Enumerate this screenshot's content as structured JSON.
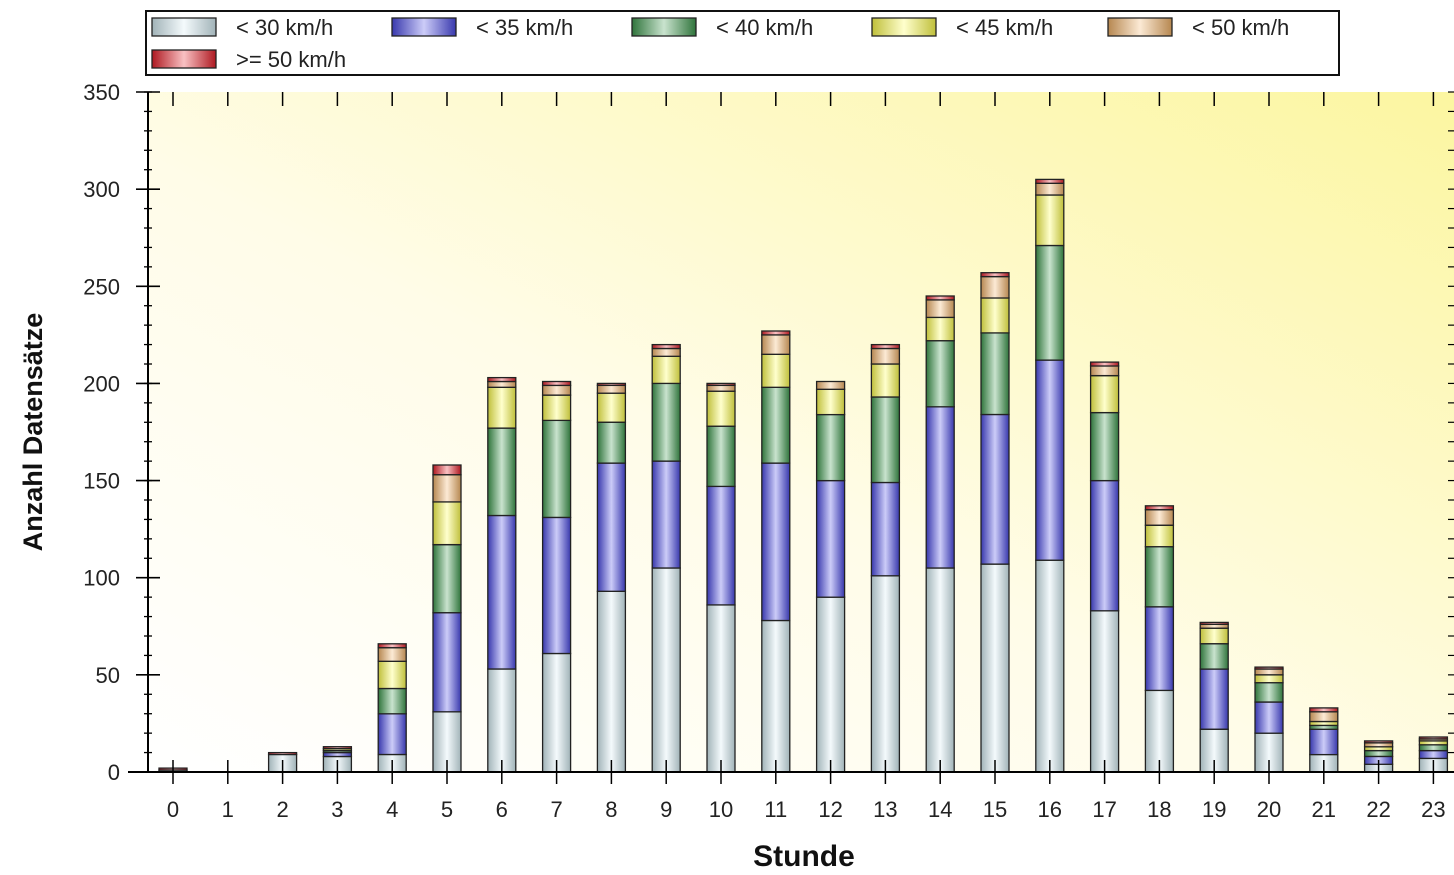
{
  "chart_data": {
    "type": "bar",
    "stacked": true,
    "title": "",
    "xlabel": "Stunde",
    "ylabel": "Anzahl Datensätze",
    "ylim": [
      0,
      350
    ],
    "yticks": [
      0,
      50,
      100,
      150,
      200,
      250,
      300,
      350
    ],
    "grid": false,
    "legend_position": "top",
    "categories": [
      "0",
      "1",
      "2",
      "3",
      "4",
      "5",
      "6",
      "7",
      "8",
      "9",
      "10",
      "11",
      "12",
      "13",
      "14",
      "15",
      "16",
      "17",
      "18",
      "19",
      "20",
      "21",
      "22",
      "23"
    ],
    "series": [
      {
        "name": "< 30 km/h",
        "color": "#d7eef5",
        "values": [
          1,
          0,
          9,
          8,
          9,
          31,
          53,
          61,
          93,
          105,
          86,
          78,
          90,
          101,
          105,
          107,
          109,
          83,
          42,
          22,
          20,
          9,
          4,
          7
        ]
      },
      {
        "name": "< 35 km/h",
        "color": "#4a4ae6",
        "values": [
          0,
          0,
          0,
          2,
          21,
          51,
          79,
          70,
          66,
          55,
          61,
          81,
          60,
          48,
          83,
          77,
          103,
          67,
          43,
          31,
          16,
          13,
          4,
          4
        ]
      },
      {
        "name": "< 40 km/h",
        "color": "#3f9a4f",
        "values": [
          0,
          0,
          0,
          1,
          13,
          35,
          45,
          50,
          21,
          40,
          31,
          39,
          34,
          44,
          34,
          42,
          59,
          35,
          31,
          13,
          10,
          2,
          3,
          3
        ]
      },
      {
        "name": "< 45 km/h",
        "color": "#ffff4d",
        "values": [
          0,
          0,
          0,
          1,
          14,
          22,
          21,
          13,
          15,
          14,
          18,
          17,
          13,
          17,
          12,
          18,
          26,
          19,
          11,
          8,
          4,
          2,
          2,
          2
        ]
      },
      {
        "name": "< 50 km/h",
        "color": "#f3b46a",
        "values": [
          0,
          0,
          0,
          0,
          7,
          14,
          3,
          5,
          4,
          4,
          3,
          10,
          4,
          8,
          9,
          11,
          6,
          5,
          8,
          2,
          3,
          5,
          2,
          1
        ]
      },
      {
        "name": ">= 50 km/h",
        "color": "#e8202a",
        "values": [
          1,
          0,
          1,
          1,
          2,
          5,
          2,
          2,
          1,
          2,
          1,
          2,
          0,
          2,
          2,
          2,
          2,
          2,
          2,
          1,
          1,
          2,
          1,
          1
        ]
      }
    ],
    "colors": {
      "background_left": "#ffffff",
      "background_right": "#fcf6a0",
      "bar_outline": "#222222",
      "axis": "#000000"
    }
  }
}
